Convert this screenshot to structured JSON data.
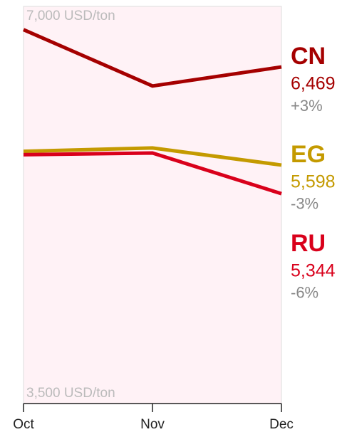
{
  "chart_data": {
    "type": "line",
    "categories": [
      "Oct",
      "Nov",
      "Dec"
    ],
    "series": [
      {
        "name": "CN",
        "color": "#a50000",
        "values": [
          6800,
          6300,
          6469
        ],
        "value_labels": [
          null,
          null,
          "6,469"
        ],
        "change": "+3%"
      },
      {
        "name": "EG",
        "color": "#c49a00",
        "values": [
          5720,
          5750,
          5598
        ],
        "value_labels": [
          null,
          null,
          "5,598"
        ],
        "change": "-3%"
      },
      {
        "name": "RU",
        "color": "#d9001b",
        "values": [
          5690,
          5705,
          5344
        ],
        "value_labels": [
          null,
          null,
          "5,344"
        ],
        "change": "-6%"
      }
    ],
    "ylim": [
      3500,
      7000
    ],
    "yticks": [
      {
        "value": 7000,
        "label": "7,000 USD/ton"
      },
      {
        "value": 3500,
        "label": "3,500 USD/ton"
      }
    ]
  }
}
